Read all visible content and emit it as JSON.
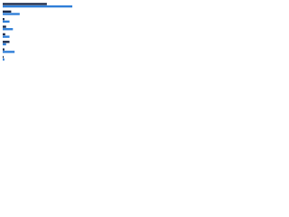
{
  "chart_data": {
    "type": "bar",
    "orientation": "horizontal",
    "categories": [
      null,
      null,
      null,
      null,
      null,
      null,
      null,
      null
    ],
    "series": [
      {
        "color": "#1b2a4a",
        "values": [
          52,
          10,
          2,
          4,
          3,
          8,
          2,
          1
        ]
      },
      {
        "color": "#2f7ed8",
        "values": [
          82,
          20,
          8,
          12,
          8,
          4,
          14,
          2
        ]
      }
    ],
    "xlim": [
      0,
      100
    ]
  }
}
